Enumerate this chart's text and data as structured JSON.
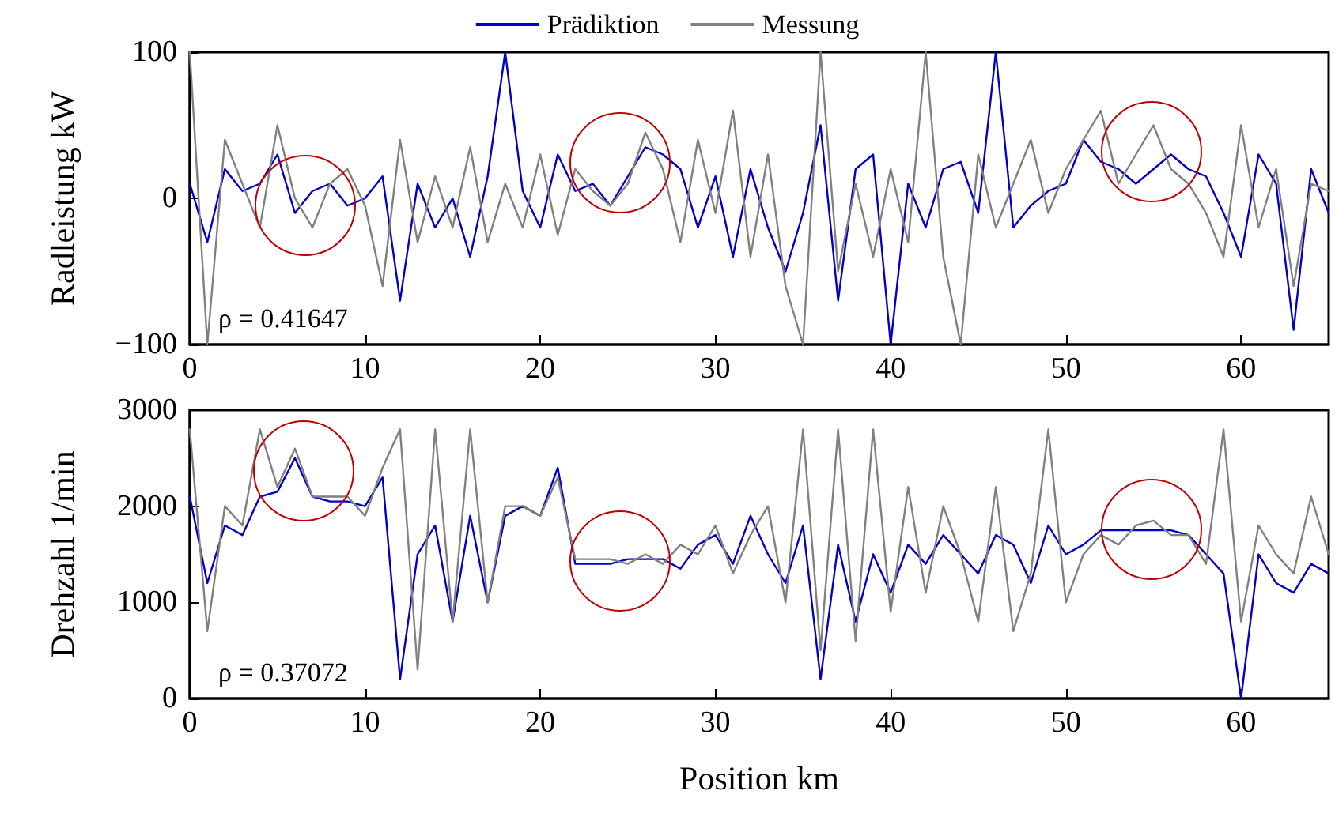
{
  "chart_data": [
    {
      "type": "line",
      "ylabel": "Radleistung kW",
      "legend": "top",
      "marker": "none",
      "grid": false,
      "line_style": "solid",
      "annotations": [
        "ρ = 0.41647"
      ],
      "x": [
        0,
        1,
        2,
        3,
        4,
        5,
        6,
        7,
        8,
        9,
        10,
        11,
        12,
        13,
        14,
        15,
        16,
        17,
        18,
        19,
        20,
        21,
        22,
        23,
        24,
        25,
        26,
        27,
        28,
        29,
        30,
        31,
        32,
        33,
        34,
        35,
        36,
        37,
        38,
        39,
        40,
        41,
        42,
        43,
        44,
        45,
        46,
        47,
        48,
        49,
        50,
        51,
        52,
        53,
        54,
        55,
        56,
        57,
        58,
        59,
        60,
        61,
        62,
        63,
        64,
        65
      ],
      "xlim": [
        0,
        65
      ],
      "xticks": [
        0,
        10,
        20,
        30,
        40,
        50,
        60
      ],
      "ylim": [
        -100,
        100
      ],
      "yticks": [
        -100,
        0,
        100
      ],
      "series": [
        {
          "name": "Prädiktion",
          "color": "#0000c8",
          "values": [
            10,
            -30,
            20,
            5,
            10,
            30,
            -10,
            5,
            10,
            -5,
            0,
            15,
            -70,
            10,
            -20,
            0,
            -40,
            15,
            100,
            5,
            -20,
            30,
            5,
            10,
            -5,
            15,
            35,
            30,
            20,
            -20,
            15,
            -40,
            20,
            -20,
            -50,
            -10,
            50,
            -70,
            20,
            30,
            -100,
            10,
            -20,
            20,
            25,
            -10,
            100,
            -20,
            -5,
            5,
            10,
            40,
            25,
            20,
            10,
            20,
            30,
            20,
            15,
            -10,
            -40,
            30,
            10,
            -90,
            20,
            -10
          ]
        },
        {
          "name": "Messung",
          "color": "#808080",
          "values": [
            100,
            -100,
            40,
            10,
            -20,
            50,
            0,
            -20,
            10,
            20,
            -5,
            -60,
            40,
            -30,
            15,
            -20,
            35,
            -30,
            10,
            -20,
            30,
            -25,
            20,
            5,
            -5,
            10,
            45,
            20,
            -30,
            40,
            -10,
            60,
            -40,
            30,
            -60,
            -100,
            100,
            -50,
            10,
            -40,
            20,
            -30,
            100,
            -40,
            -100,
            30,
            -20,
            10,
            40,
            -10,
            20,
            40,
            60,
            10,
            30,
            50,
            20,
            10,
            -10,
            -40,
            50,
            -20,
            20,
            -60,
            10,
            5
          ]
        }
      ]
    },
    {
      "type": "line",
      "ylabel": "Drehzahl 1/min",
      "xlabel": "Position km",
      "marker": "none",
      "grid": false,
      "line_style": "solid",
      "annotations": [
        "ρ = 0.37072"
      ],
      "x": [
        0,
        1,
        2,
        3,
        4,
        5,
        6,
        7,
        8,
        9,
        10,
        11,
        12,
        13,
        14,
        15,
        16,
        17,
        18,
        19,
        20,
        21,
        22,
        23,
        24,
        25,
        26,
        27,
        28,
        29,
        30,
        31,
        32,
        33,
        34,
        35,
        36,
        37,
        38,
        39,
        40,
        41,
        42,
        43,
        44,
        45,
        46,
        47,
        48,
        49,
        50,
        51,
        52,
        53,
        54,
        55,
        56,
        57,
        58,
        59,
        60,
        61,
        62,
        63,
        64,
        65
      ],
      "xlim": [
        0,
        65
      ],
      "xticks": [
        0,
        10,
        20,
        30,
        40,
        50,
        60
      ],
      "ylim": [
        0,
        3000
      ],
      "yticks": [
        0,
        1000,
        2000,
        3000
      ],
      "series": [
        {
          "color": "#0000c8",
          "values": [
            2100,
            1200,
            1800,
            1700,
            2100,
            2150,
            2500,
            2100,
            2050,
            2050,
            2000,
            2300,
            200,
            1500,
            1800,
            800,
            1900,
            1000,
            1900,
            2000,
            1900,
            2400,
            1400,
            1400,
            1400,
            1450,
            1450,
            1450,
            1350,
            1600,
            1700,
            1400,
            1900,
            1500,
            1200,
            1800,
            200,
            1600,
            800,
            1500,
            1100,
            1600,
            1400,
            1700,
            1500,
            1300,
            1700,
            1600,
            1200,
            1800,
            1500,
            1600,
            1750,
            1750,
            1750,
            1750,
            1750,
            1700,
            1500,
            1300,
            0,
            1500,
            1200,
            1100,
            1400,
            1300
          ]
        },
        {
          "color": "#808080",
          "values": [
            2800,
            700,
            2000,
            1800,
            2800,
            2200,
            2600,
            2100,
            2100,
            2100,
            1900,
            2400,
            2800,
            300,
            2800,
            800,
            2800,
            1000,
            2000,
            2000,
            1900,
            2300,
            1450,
            1450,
            1450,
            1400,
            1500,
            1400,
            1600,
            1500,
            1800,
            1300,
            1700,
            2000,
            1000,
            2800,
            500,
            2800,
            600,
            2800,
            900,
            2200,
            1100,
            2000,
            1500,
            800,
            2200,
            700,
            1300,
            2800,
            1000,
            1500,
            1700,
            1600,
            1800,
            1850,
            1700,
            1700,
            1400,
            2800,
            800,
            1800,
            1500,
            1300,
            2100,
            1500
          ]
        }
      ]
    }
  ]
}
